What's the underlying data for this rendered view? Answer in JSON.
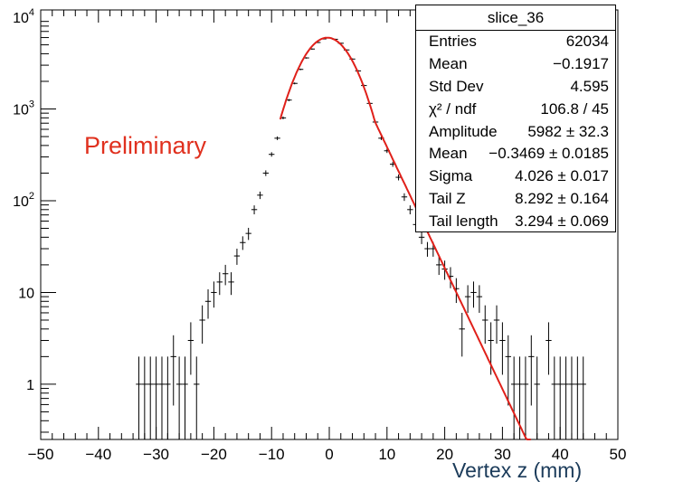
{
  "chart_data": {
    "type": "histogram",
    "xlabel": "Vertex z (mm)",
    "ylog": true,
    "xlim": [
      -50,
      50
    ],
    "ylim": [
      0.25,
      12000
    ],
    "xticks": [
      -50,
      -40,
      -30,
      -20,
      -10,
      0,
      10,
      20,
      30,
      40,
      50
    ],
    "xtick_labels": [
      "−50",
      "−40",
      "−30",
      "−20",
      "−10",
      "0",
      "10",
      "20",
      "30",
      "40",
      "50"
    ],
    "yticks": [
      1,
      10,
      100,
      1000,
      10000
    ],
    "ytick_labels": [
      "1",
      "10",
      "10^2",
      "10^3",
      "10^4"
    ],
    "annotation": "Preliminary",
    "annotation_color": "#e0301e",
    "fit_color": "#e0201a",
    "data_color": "#000000",
    "points": [
      {
        "x": -33,
        "y": 1
      },
      {
        "x": -32,
        "y": 1
      },
      {
        "x": -31,
        "y": 1
      },
      {
        "x": -30,
        "y": 1
      },
      {
        "x": -29,
        "y": 1
      },
      {
        "x": -28,
        "y": 1
      },
      {
        "x": -27,
        "y": 2
      },
      {
        "x": -26,
        "y": 1
      },
      {
        "x": -25,
        "y": 1
      },
      {
        "x": -24,
        "y": 3
      },
      {
        "x": -23,
        "y": 1
      },
      {
        "x": -22,
        "y": 5
      },
      {
        "x": -21,
        "y": 8
      },
      {
        "x": -20,
        "y": 10
      },
      {
        "x": -19,
        "y": 13
      },
      {
        "x": -18,
        "y": 16
      },
      {
        "x": -17,
        "y": 13
      },
      {
        "x": -16,
        "y": 25
      },
      {
        "x": -15,
        "y": 35
      },
      {
        "x": -14,
        "y": 44
      },
      {
        "x": -13,
        "y": 80
      },
      {
        "x": -12,
        "y": 115
      },
      {
        "x": -11,
        "y": 200
      },
      {
        "x": -10,
        "y": 320
      },
      {
        "x": -9,
        "y": 480
      },
      {
        "x": -8,
        "y": 800
      },
      {
        "x": -7,
        "y": 1250
      },
      {
        "x": -6,
        "y": 1900
      },
      {
        "x": -5,
        "y": 2700
      },
      {
        "x": -4,
        "y": 3600
      },
      {
        "x": -3,
        "y": 4500
      },
      {
        "x": -2,
        "y": 5300
      },
      {
        "x": -1,
        "y": 5800
      },
      {
        "x": 0,
        "y": 5950
      },
      {
        "x": 1,
        "y": 5750
      },
      {
        "x": 2,
        "y": 5200
      },
      {
        "x": 3,
        "y": 4400
      },
      {
        "x": 4,
        "y": 3500
      },
      {
        "x": 5,
        "y": 2600
      },
      {
        "x": 6,
        "y": 1800
      },
      {
        "x": 7,
        "y": 1150
      },
      {
        "x": 8,
        "y": 720
      },
      {
        "x": 9,
        "y": 480
      },
      {
        "x": 10,
        "y": 350
      },
      {
        "x": 11,
        "y": 250
      },
      {
        "x": 12,
        "y": 180
      },
      {
        "x": 13,
        "y": 110
      },
      {
        "x": 14,
        "y": 80
      },
      {
        "x": 15,
        "y": 55
      },
      {
        "x": 16,
        "y": 40
      },
      {
        "x": 17,
        "y": 30
      },
      {
        "x": 18,
        "y": 30
      },
      {
        "x": 19,
        "y": 20
      },
      {
        "x": 20,
        "y": 18
      },
      {
        "x": 21,
        "y": 15
      },
      {
        "x": 22,
        "y": 11
      },
      {
        "x": 23,
        "y": 4
      },
      {
        "x": 24,
        "y": 9
      },
      {
        "x": 25,
        "y": 10
      },
      {
        "x": 26,
        "y": 9
      },
      {
        "x": 27,
        "y": 5
      },
      {
        "x": 28,
        "y": 3
      },
      {
        "x": 29,
        "y": 5
      },
      {
        "x": 30,
        "y": 3
      },
      {
        "x": 31,
        "y": 2
      },
      {
        "x": 32,
        "y": 1
      },
      {
        "x": 33,
        "y": 1
      },
      {
        "x": 34,
        "y": 1
      },
      {
        "x": 35,
        "y": 2
      },
      {
        "x": 36,
        "y": 1
      },
      {
        "x": 38,
        "y": 3
      },
      {
        "x": 39,
        "y": 1
      },
      {
        "x": 40,
        "y": 1
      },
      {
        "x": 41,
        "y": 1
      },
      {
        "x": 42,
        "y": 1
      },
      {
        "x": 43,
        "y": 1
      },
      {
        "x": 44,
        "y": 1
      }
    ],
    "fit": {
      "x_range": [
        -8.5,
        35
      ],
      "amplitude": 5982,
      "mean": -0.3469,
      "sigma": 4.026,
      "tail_z": 8.292,
      "tail_length": 3.294
    }
  },
  "stats": {
    "title": "slice_36",
    "rows": [
      {
        "label": "Entries",
        "value": "62034"
      },
      {
        "label": "Mean",
        "value": "−0.1917"
      },
      {
        "label": "Std Dev",
        "value": "4.595"
      },
      {
        "label": "χ² / ndf",
        "value": "106.8 / 45"
      },
      {
        "label": "Amplitude",
        "value": "5982 ± 32.3"
      },
      {
        "label": "Mean",
        "value": "−0.3469 ± 0.0185"
      },
      {
        "label": "Sigma",
        "value": "4.026 ± 0.017"
      },
      {
        "label": "Tail Z",
        "value": "8.292 ± 0.164"
      },
      {
        "label": "Tail length",
        "value": "3.294 ± 0.069"
      }
    ]
  }
}
